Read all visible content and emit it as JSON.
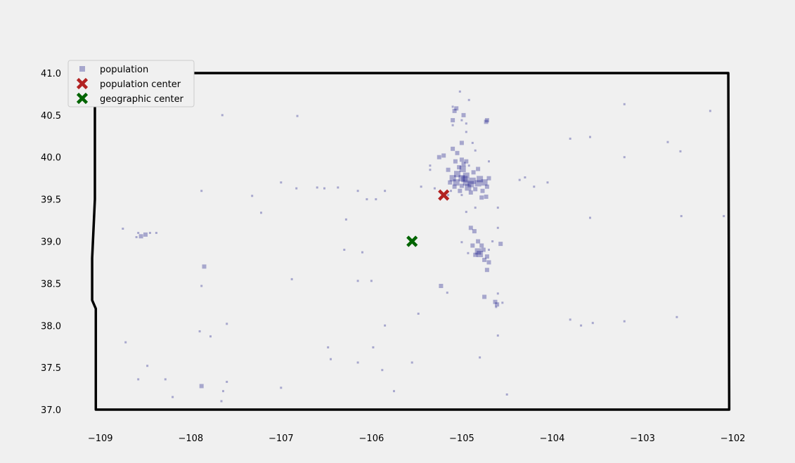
{
  "chart_data": {
    "type": "scatter",
    "title": "",
    "xlabel": "",
    "ylabel": "",
    "xlim": [
      -109.2,
      -101.95
    ],
    "ylim": [
      36.9,
      41.05
    ],
    "grid": false,
    "legend_placement": "top-left",
    "x_ticks": [
      -109,
      -108,
      -107,
      -106,
      -105,
      -104,
      -103,
      -102
    ],
    "x_tick_labels": [
      "−109",
      "−108",
      "−107",
      "−106",
      "−105",
      "−104",
      "−103",
      "−102"
    ],
    "y_ticks": [
      37.0,
      37.5,
      38.0,
      38.5,
      39.0,
      39.5,
      40.0,
      40.5,
      41.0
    ],
    "y_tick_labels": [
      "37.0",
      "37.5",
      "38.0",
      "38.5",
      "39.0",
      "39.5",
      "40.0",
      "40.5",
      "41.0"
    ],
    "boundary": {
      "color": "#000000",
      "points": [
        [
          -109.05,
          41.0
        ],
        [
          -106.0,
          41.0
        ],
        [
          -104.0,
          41.0
        ],
        [
          -102.05,
          41.0
        ],
        [
          -102.04,
          37.0
        ],
        [
          -103.0,
          37.0
        ],
        [
          -105.0,
          37.0
        ],
        [
          -107.0,
          37.0
        ],
        [
          -109.05,
          37.0
        ],
        [
          -109.05,
          38.2
        ],
        [
          -109.09,
          38.3
        ],
        [
          -109.09,
          38.8
        ],
        [
          -109.06,
          39.5
        ],
        [
          -109.06,
          41.0
        ]
      ]
    },
    "series": [
      {
        "name": "population",
        "marker": "square",
        "color": "#00007f",
        "alpha": 0.3,
        "points": [
          [
            -105.0,
            39.75,
            3
          ],
          [
            -104.97,
            39.74,
            3
          ],
          [
            -104.95,
            39.7,
            3
          ],
          [
            -104.88,
            39.72,
            3
          ],
          [
            -104.82,
            39.69,
            3
          ],
          [
            -105.05,
            39.8,
            3
          ],
          [
            -104.99,
            39.86,
            3
          ],
          [
            -104.93,
            39.64,
            3
          ],
          [
            -105.08,
            39.65,
            2
          ],
          [
            -105.1,
            39.75,
            3
          ],
          [
            -104.8,
            39.74,
            3
          ],
          [
            -104.75,
            39.7,
            3
          ],
          [
            -104.77,
            39.6,
            2
          ],
          [
            -104.9,
            39.58,
            2
          ],
          [
            -105.02,
            39.6,
            2
          ],
          [
            -104.87,
            39.82,
            2
          ],
          [
            -105.03,
            39.88,
            2
          ],
          [
            -104.98,
            39.92,
            2
          ],
          [
            -105.13,
            39.7,
            2
          ],
          [
            -105.07,
            39.95,
            2
          ],
          [
            -105.0,
            39.97,
            2
          ],
          [
            -104.82,
            39.86,
            2
          ],
          [
            -104.72,
            39.65,
            2
          ],
          [
            -104.95,
            39.78,
            3
          ],
          [
            -105.06,
            39.7,
            3
          ],
          [
            -104.9,
            39.68,
            3
          ],
          [
            -105.0,
            39.66,
            2
          ],
          [
            -104.85,
            39.62,
            2
          ],
          [
            -104.7,
            39.75,
            2
          ],
          [
            -105.15,
            39.85,
            2
          ],
          [
            -105.12,
            39.6,
            1
          ],
          [
            -104.92,
            39.9,
            1
          ],
          [
            -105.2,
            40.02,
            2
          ],
          [
            -105.25,
            40.0,
            2
          ],
          [
            -105.05,
            40.05,
            2
          ],
          [
            -105.1,
            40.1,
            2
          ],
          [
            -105.0,
            40.17,
            2
          ],
          [
            -104.88,
            40.17,
            1
          ],
          [
            -104.95,
            40.3,
            1
          ],
          [
            -105.1,
            40.38,
            1
          ],
          [
            -105.08,
            40.55,
            2
          ],
          [
            -105.06,
            40.58,
            2
          ],
          [
            -104.98,
            40.5,
            2
          ],
          [
            -104.73,
            40.42,
            2
          ],
          [
            -104.72,
            40.44,
            2
          ],
          [
            -105.1,
            40.44,
            2
          ],
          [
            -105.1,
            40.6,
            1
          ],
          [
            -104.95,
            40.4,
            1
          ],
          [
            -105.02,
            40.78,
            1
          ],
          [
            -104.85,
            40.08,
            1
          ],
          [
            -104.7,
            39.95,
            1
          ],
          [
            -104.95,
            39.95,
            2
          ],
          [
            -105.35,
            39.9,
            1
          ],
          [
            -105.35,
            39.85,
            1
          ],
          [
            -105.45,
            39.65,
            1
          ],
          [
            -105.3,
            39.63,
            1
          ],
          [
            -105.15,
            39.55,
            1
          ],
          [
            -104.73,
            39.53,
            2
          ],
          [
            -104.78,
            39.52,
            2
          ],
          [
            -105.0,
            39.55,
            1
          ],
          [
            -104.6,
            39.4,
            1
          ],
          [
            -104.85,
            39.4,
            1
          ],
          [
            -104.95,
            39.35,
            1
          ],
          [
            -104.82,
            38.88,
            3
          ],
          [
            -104.8,
            38.85,
            3
          ],
          [
            -104.76,
            38.9,
            2
          ],
          [
            -104.72,
            38.82,
            2
          ],
          [
            -104.75,
            38.78,
            2
          ],
          [
            -104.85,
            38.84,
            2
          ],
          [
            -104.7,
            38.9,
            1
          ],
          [
            -104.88,
            38.95,
            2
          ],
          [
            -104.78,
            38.95,
            2
          ],
          [
            -104.82,
            39.0,
            2
          ],
          [
            -104.7,
            38.75,
            2
          ],
          [
            -104.72,
            38.66,
            2
          ],
          [
            -104.57,
            38.97,
            2
          ],
          [
            -104.66,
            39.0,
            1
          ],
          [
            -104.86,
            39.12,
            2
          ],
          [
            -104.9,
            39.16,
            2
          ],
          [
            -104.6,
            39.16,
            1
          ],
          [
            -105.0,
            38.99,
            1
          ],
          [
            -104.93,
            38.86,
            1
          ],
          [
            -104.61,
            38.25,
            2
          ],
          [
            -104.63,
            38.28,
            2
          ],
          [
            -104.55,
            38.27,
            1
          ],
          [
            -104.75,
            38.34,
            2
          ],
          [
            -104.62,
            38.22,
            1
          ],
          [
            -104.6,
            38.38,
            1
          ],
          [
            -105.23,
            38.47,
            2
          ],
          [
            -105.16,
            38.39,
            1
          ],
          [
            -104.6,
            37.88,
            1
          ],
          [
            -104.8,
            37.62,
            1
          ],
          [
            -104.5,
            37.18,
            1
          ],
          [
            -108.55,
            39.06,
            2
          ],
          [
            -108.5,
            39.08,
            2
          ],
          [
            -108.58,
            39.1,
            1
          ],
          [
            -108.45,
            39.1,
            1
          ],
          [
            -108.38,
            39.1,
            1
          ],
          [
            -108.75,
            39.15,
            1
          ],
          [
            -108.6,
            39.05,
            1
          ],
          [
            -107.88,
            39.6,
            1
          ],
          [
            -107.32,
            39.54,
            1
          ],
          [
            -107.22,
            39.34,
            1
          ],
          [
            -106.83,
            39.63,
            1
          ],
          [
            -106.6,
            39.64,
            1
          ],
          [
            -106.52,
            39.63,
            1
          ],
          [
            -106.37,
            39.64,
            1
          ],
          [
            -107.0,
            39.7,
            1
          ],
          [
            -107.65,
            40.5,
            1
          ],
          [
            -106.82,
            40.49,
            1
          ],
          [
            -105.85,
            39.6,
            1
          ],
          [
            -106.05,
            39.5,
            1
          ],
          [
            -105.95,
            39.5,
            1
          ],
          [
            -106.15,
            39.6,
            1
          ],
          [
            -105.0,
            40.44,
            1
          ],
          [
            -107.85,
            38.7,
            2
          ],
          [
            -107.88,
            38.47,
            1
          ],
          [
            -107.6,
            38.02,
            1
          ],
          [
            -107.9,
            37.93,
            1
          ],
          [
            -107.78,
            37.87,
            1
          ],
          [
            -106.88,
            38.55,
            1
          ],
          [
            -106.0,
            38.53,
            1
          ],
          [
            -106.1,
            38.87,
            1
          ],
          [
            -105.85,
            38.0,
            1
          ],
          [
            -105.48,
            38.14,
            1
          ],
          [
            -105.55,
            37.56,
            1
          ],
          [
            -105.88,
            37.47,
            1
          ],
          [
            -106.15,
            37.56,
            1
          ],
          [
            -105.98,
            37.74,
            1
          ],
          [
            -106.48,
            37.74,
            1
          ],
          [
            -107.88,
            37.28,
            2
          ],
          [
            -107.6,
            37.33,
            1
          ],
          [
            -107.64,
            37.22,
            1
          ],
          [
            -108.58,
            37.36,
            1
          ],
          [
            -108.48,
            37.52,
            1
          ],
          [
            -108.28,
            37.36,
            1
          ],
          [
            -107.0,
            37.26,
            1
          ],
          [
            -107.66,
            37.1,
            1
          ],
          [
            -108.2,
            37.15,
            1
          ],
          [
            -105.75,
            37.22,
            1
          ],
          [
            -104.92,
            40.68,
            1
          ],
          [
            -102.58,
            40.07,
            1
          ],
          [
            -102.25,
            40.55,
            1
          ],
          [
            -103.2,
            40.63,
            1
          ],
          [
            -103.8,
            40.22,
            1
          ],
          [
            -103.58,
            40.24,
            1
          ],
          [
            -103.2,
            40.0,
            1
          ],
          [
            -102.72,
            40.18,
            1
          ],
          [
            -102.1,
            39.3,
            1
          ],
          [
            -103.58,
            39.28,
            1
          ],
          [
            -103.68,
            38.0,
            1
          ],
          [
            -103.55,
            38.03,
            1
          ],
          [
            -103.8,
            38.07,
            1
          ],
          [
            -103.2,
            38.05,
            1
          ],
          [
            -102.62,
            38.1,
            1
          ],
          [
            -102.57,
            39.3,
            1
          ],
          [
            -104.2,
            39.65,
            1
          ],
          [
            -104.05,
            39.7,
            1
          ],
          [
            -104.36,
            39.73,
            1
          ],
          [
            -104.3,
            39.76,
            1
          ],
          [
            -106.28,
            39.26,
            1
          ],
          [
            -106.3,
            38.9,
            1
          ],
          [
            -106.15,
            38.53,
            1
          ],
          [
            -108.72,
            37.8,
            1
          ],
          [
            -106.45,
            37.6,
            1
          ]
        ]
      },
      {
        "name": "population center",
        "marker": "x",
        "color": "#b22222",
        "points": [
          [
            -105.2,
            39.55
          ]
        ]
      },
      {
        "name": "geographic center",
        "marker": "x",
        "color": "#006400",
        "points": [
          [
            -105.55,
            39.0
          ]
        ]
      }
    ],
    "legend": [
      {
        "label": "population",
        "marker": "square",
        "color": "#00007f"
      },
      {
        "label": "population center",
        "marker": "x",
        "color": "#b22222"
      },
      {
        "label": "geographic center",
        "marker": "x",
        "color": "#006400"
      }
    ]
  }
}
